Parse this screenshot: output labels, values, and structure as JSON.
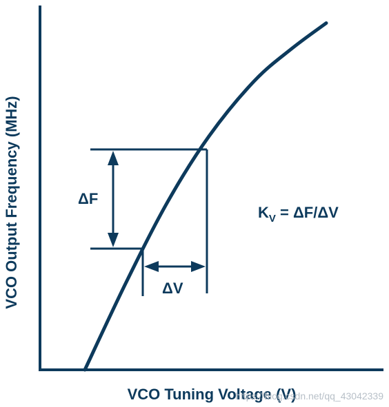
{
  "chart_data": {
    "type": "line",
    "title": "",
    "xlabel": "VCO Tuning Voltage (V)",
    "ylabel": "VCO Output Frequency (MHz)",
    "tick_labels": "none",
    "grid": false,
    "legend": "none",
    "series": [
      {
        "name": "",
        "points": [
          [
            0.13,
            0.0
          ],
          [
            0.25,
            0.24
          ],
          [
            0.37,
            0.46
          ],
          [
            0.49,
            0.64
          ],
          [
            0.62,
            0.79
          ],
          [
            0.73,
            0.88
          ],
          [
            0.83,
            0.95
          ]
        ]
      }
    ],
    "annotations": {
      "delta_f": "ΔF",
      "delta_v": "ΔV",
      "formula_k": "K",
      "formula_sub": "V",
      "formula_rest": " = ΔF/ΔV"
    },
    "colors": {
      "line": "#0d3a5c",
      "text": "#0d3a5c"
    }
  },
  "watermark": "https://blog.csdn.net/qq_43042339"
}
